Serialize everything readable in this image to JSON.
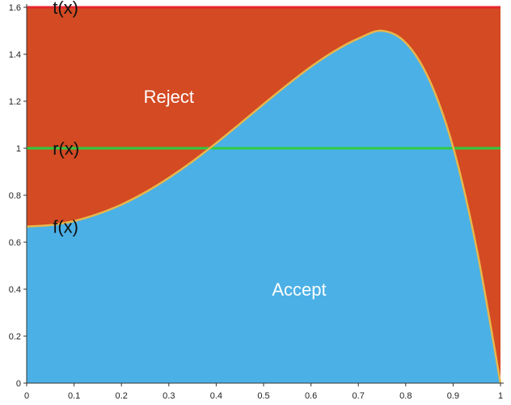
{
  "chart_data": {
    "type": "area",
    "xlim": [
      0,
      1
    ],
    "ylim": [
      0,
      1.6
    ],
    "x_ticks": [
      "0",
      "0.1",
      "0.2",
      "0.3",
      "0.4",
      "0.5",
      "0.6",
      "0.7",
      "0.8",
      "0.9",
      "1"
    ],
    "y_ticks": [
      "0",
      "0.2",
      "0.4",
      "0.6",
      "0.8",
      "1",
      "1.2",
      "1.4",
      "1.6"
    ],
    "grid": false,
    "series": [
      {
        "name": "f(x)",
        "color": "#e8b64a",
        "x": [
          0,
          0.05,
          0.1,
          0.15,
          0.2,
          0.25,
          0.3,
          0.35,
          0.4,
          0.45,
          0.5,
          0.55,
          0.6,
          0.65,
          0.7,
          0.75,
          0.8,
          0.85,
          0.9,
          0.95,
          1.0
        ],
        "y": [
          0.667,
          0.673,
          0.69,
          0.72,
          0.76,
          0.812,
          0.874,
          0.944,
          1.022,
          1.104,
          1.188,
          1.27,
          1.347,
          1.414,
          1.467,
          1.5,
          1.449,
          1.29,
          1.005,
          0.57,
          0.0
        ]
      },
      {
        "name": "r(x)",
        "color": "#2ecc40",
        "x": [
          0,
          1
        ],
        "y": [
          1,
          1
        ]
      },
      {
        "name": "t(x)",
        "color": "#e6262e",
        "x": [
          0,
          1
        ],
        "y": [
          1.6,
          1.6
        ]
      }
    ],
    "annotations": [
      {
        "text": "t(x)",
        "x": 0.055,
        "y": 1.6
      },
      {
        "text": "r(x)",
        "x": 0.055,
        "y": 1.0
      },
      {
        "text": "f(x)",
        "x": 0.055,
        "y": 0.667
      },
      {
        "text": "Reject",
        "x": 0.3,
        "y": 1.22
      },
      {
        "text": "Accept",
        "x": 0.575,
        "y": 0.4
      }
    ],
    "colors": {
      "accept": "#4bb0e6",
      "reject": "#d34a23",
      "axis": "#333333"
    }
  }
}
